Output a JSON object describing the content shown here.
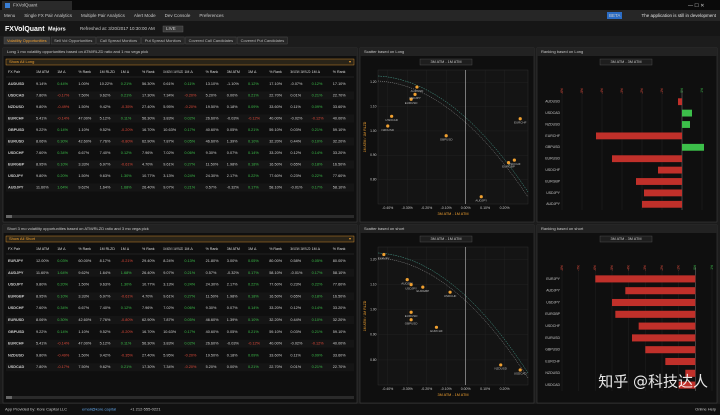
{
  "window": {
    "title": "FXVolQuant"
  },
  "menu": {
    "items": [
      "Menu",
      "Single FX Pair Analytics",
      "Multiple Pair Analytics",
      "Alert Mode",
      "Dev Console",
      "Preferences"
    ],
    "beta": "BETA",
    "notice": "The application is still in development"
  },
  "header": {
    "app": "FXVolQuant",
    "universe": "Majors",
    "refreshed": "Refreshed at: 3/20/2017 10:30:00 AM",
    "mode": "LIVE"
  },
  "tabs": [
    "Volatility Opportunities",
    "Sell Vol Opportunities",
    "Call Spread Monitors",
    "Put Spread Monitors",
    "Covered Call Candidates",
    "Covered Put Candidates"
  ],
  "panels": [
    {
      "table": {
        "title": "Long 1 mo volatility opportunities based on ATM/RLZD ratio and 1 mo vega pick",
        "filter": "Show All Long",
        "columns": [
          "FX Pair",
          "1M ATM",
          "1M Δ",
          "% Rank",
          "1M RLZD",
          "1M Δ",
          "% Rank",
          "1M ATM / 1M RLZD",
          "1M Δ",
          "% Rank",
          "3M ATM",
          "1M Δ",
          "% Rank",
          "3M ATM / 3M RLZD",
          "1M Δ",
          "% Rank"
        ],
        "rows": [
          [
            "AUDUSD",
            "9.14%",
            "0.44%",
            "1.00%",
            "10.22%",
            "0.21%",
            "56.30%",
            "0.61%",
            "0.11%",
            "13.10%",
            "-1.10%",
            "0.12%",
            "17.10%",
            "-0.07%",
            "0.12%",
            "17.10%"
          ],
          [
            "USDCAD",
            "7.80%",
            "-0.17%",
            "7.50%",
            "9.62%",
            "0.21%",
            "17.30%",
            "7.34%",
            "-0.20%",
            "5.20%",
            "0.00%",
            "0.21%",
            "22.70%",
            "0.01%",
            "0.21%",
            "22.70%"
          ],
          [
            "NZDUSD",
            "9.80%",
            "-0.49%",
            "1.50%",
            "9.42%",
            "-0.35%",
            "27.40%",
            "5.95%",
            "-0.20%",
            "19.50%",
            "0.18%",
            "0.09%",
            "33.60%",
            "0.11%",
            "0.09%",
            "33.60%"
          ],
          [
            "EURCHF",
            "5.41%",
            "-0.14%",
            "47.00%",
            "5.12%",
            "0.11%",
            "56.30%",
            "3.83%",
            "0.02%",
            "26.60%",
            "-0.03%",
            "-0.12%",
            "40.00%",
            "-0.02%",
            "-0.12%",
            "40.00%"
          ],
          [
            "GBPUSD",
            "9.22%",
            "0.14%",
            "1.10%",
            "9.52%",
            "-0.20%",
            "16.70%",
            "10.63%",
            "0.17%",
            "40.60%",
            "0.05%",
            "0.21%",
            "59.10%",
            "0.03%",
            "0.21%",
            "59.10%"
          ],
          [
            "EURUSD",
            "8.06%",
            "0.30%",
            "42.60%",
            "7.76%",
            "-0.80%",
            "62.90%",
            "7.87%",
            "0.05%",
            "46.60%",
            "1.39%",
            "0.10%",
            "32.20%",
            "0.44%",
            "0.10%",
            "32.20%"
          ],
          [
            "USDCHF",
            "7.60%",
            "0.34%",
            "6.67%",
            "7.40%",
            "0.12%",
            "7.96%",
            "7.02%",
            "0.06%",
            "9.30%",
            "0.07%",
            "0.14%",
            "33.20%",
            "0.12%",
            "0.14%",
            "33.20%"
          ],
          [
            "EURGBP",
            "8.95%",
            "0.10%",
            "3.33%",
            "6.97%",
            "-0.61%",
            "4.70%",
            "9.61%",
            "0.27%",
            "11.50%",
            "1.98%",
            "0.18%",
            "16.50%",
            "0.65%",
            "0.18%",
            "16.50%"
          ],
          [
            "USDJPY",
            "9.80%",
            "0.20%",
            "1.50%",
            "9.63%",
            "1.30%",
            "10.77%",
            "3.13%",
            "0.24%",
            "24.30%",
            "2.17%",
            "0.22%",
            "77.60%",
            "0.23%",
            "0.22%",
            "77.60%"
          ],
          [
            "AUDJPY",
            "11.60%",
            "1.64%",
            "9.62%",
            "1.64%",
            "1.68%",
            "26.40%",
            "9.07%",
            "0.21%",
            "0.57%",
            "-0.32%",
            "0.17%",
            "58.10%",
            "-0.01%",
            "0.17%",
            "58.10%"
          ]
        ]
      },
      "scatter": {
        "title": "Scatter based on Long",
        "selector": "3M ATM - 1M ATM",
        "xlabel": "3M ATM - 1M ATM",
        "ylabel": "1M ATM / 1M RLZD",
        "xlim": [
          -0.45,
          0.32
        ],
        "ylim": [
          0.7,
          1.25
        ],
        "xticks": [
          {
            "value": -0.4,
            "label": "-0.40%"
          },
          {
            "value": -0.3,
            "label": "-0.30%"
          },
          {
            "value": -0.2,
            "label": "-0.20%"
          },
          {
            "value": -0.1,
            "label": "-0.10%"
          },
          {
            "value": 0,
            "label": "0.00%"
          },
          {
            "value": 0.1,
            "label": "0.10%"
          },
          {
            "value": 0.2,
            "label": "0.20%"
          }
        ],
        "yticks": [
          {
            "value": 0.8,
            "label": "0.80"
          },
          {
            "value": 0.9,
            "label": "0.90"
          },
          {
            "value": 1,
            "label": "1.00"
          },
          {
            "value": 1.1,
            "label": "1.10"
          },
          {
            "value": 1.2,
            "label": "1.20"
          }
        ],
        "labels": [
          "AUDUSD",
          "USDCAD",
          "NZDUSD",
          "EURCHF",
          "GBPUSD",
          "EURUSD",
          "USDCHF",
          "EURGBP",
          "USDJPY",
          "AUDJPY"
        ],
        "x": [
          -0.25,
          -0.38,
          -0.4,
          0.28,
          -0.1,
          -0.28,
          0.25,
          0.22,
          -0.26,
          0.08
        ],
        "y": [
          1.18,
          1.06,
          1.02,
          1.05,
          0.98,
          1.13,
          0.88,
          0.87,
          1.15,
          0.73
        ]
      },
      "ranking": {
        "title": "Ranking based on Long",
        "selector": "3M ATM - 3M ATM",
        "xlim": [
          -6,
          1.5
        ],
        "xticks": [
          {
            "value": -6,
            "label": "-6%"
          },
          {
            "value": -5,
            "label": "-5%"
          },
          {
            "value": -4,
            "label": "-4%"
          },
          {
            "value": -3,
            "label": "-3%"
          },
          {
            "value": -2,
            "label": "-2%"
          },
          {
            "value": -1,
            "label": "-1%"
          },
          {
            "value": 0,
            "label": "0%"
          },
          {
            "value": 1,
            "label": "1%"
          }
        ],
        "categories": [
          "AUDUSD",
          "USDCAD",
          "NZDUSD",
          "EURCHF",
          "GBPUSD",
          "EURUSD",
          "USDCHF",
          "EURGBP",
          "USDJPY",
          "AUDJPY"
        ],
        "values": [
          -0.2,
          0.5,
          0.4,
          -4.3,
          1.1,
          -3.5,
          -1.2,
          -2.3,
          -1.9,
          -2.0
        ]
      }
    },
    {
      "table": {
        "title": "Short 3 mo volatility opportunities based on ATM/RLZD ratio and 3 mo vega pick",
        "filter": "Show All Short",
        "columns": [
          "FX Pair",
          "1M ATM",
          "1M Δ",
          "% Rank",
          "1M RLZD",
          "1M Δ",
          "% Rank",
          "1M ATM / 1M RLZD",
          "1M Δ",
          "% Rank",
          "3M ATM",
          "1M Δ",
          "% Rank",
          "3M ATM / 3M RLZD",
          "1M Δ",
          "% Rank"
        ],
        "rows": [
          [
            "EURJPY",
            "12.00%",
            "0.03%",
            "60.00%",
            "8.17%",
            "-0.21%",
            "29.40%",
            "8.24%",
            "0.13%",
            "21.80%",
            "3.00%",
            "0.05%",
            "80.00%",
            "0.58%",
            "0.05%",
            "80.00%"
          ],
          [
            "AUDJPY",
            "11.60%",
            "1.64%",
            "9.62%",
            "1.64%",
            "1.68%",
            "26.40%",
            "9.07%",
            "0.21%",
            "0.57%",
            "-0.32%",
            "0.17%",
            "58.10%",
            "-0.01%",
            "0.17%",
            "58.10%"
          ],
          [
            "USDJPY",
            "9.80%",
            "0.20%",
            "1.50%",
            "9.63%",
            "1.30%",
            "10.77%",
            "3.13%",
            "0.24%",
            "24.30%",
            "2.17%",
            "0.22%",
            "77.60%",
            "0.23%",
            "0.22%",
            "77.60%"
          ],
          [
            "EURGBP",
            "8.95%",
            "0.10%",
            "3.33%",
            "6.97%",
            "-0.61%",
            "4.70%",
            "9.61%",
            "0.27%",
            "11.50%",
            "1.98%",
            "0.18%",
            "16.50%",
            "0.65%",
            "0.18%",
            "16.50%"
          ],
          [
            "USDCHF",
            "7.60%",
            "0.34%",
            "6.67%",
            "7.40%",
            "0.12%",
            "7.96%",
            "7.02%",
            "0.06%",
            "9.30%",
            "0.07%",
            "0.14%",
            "33.20%",
            "0.12%",
            "0.14%",
            "33.20%"
          ],
          [
            "EURUSD",
            "8.06%",
            "0.30%",
            "42.60%",
            "7.76%",
            "-0.80%",
            "62.90%",
            "7.87%",
            "0.05%",
            "46.60%",
            "1.39%",
            "0.10%",
            "32.20%",
            "0.44%",
            "0.10%",
            "32.20%"
          ],
          [
            "GBPUSD",
            "9.22%",
            "0.14%",
            "1.10%",
            "9.52%",
            "-0.20%",
            "16.70%",
            "10.63%",
            "0.17%",
            "40.60%",
            "0.05%",
            "0.21%",
            "59.10%",
            "0.03%",
            "0.21%",
            "59.10%"
          ],
          [
            "EURCHF",
            "5.41%",
            "-0.14%",
            "47.00%",
            "5.12%",
            "0.11%",
            "56.30%",
            "3.83%",
            "0.02%",
            "26.60%",
            "-0.03%",
            "-0.12%",
            "40.00%",
            "-0.02%",
            "-0.12%",
            "40.00%"
          ],
          [
            "NZDUSD",
            "9.80%",
            "-0.49%",
            "1.50%",
            "9.42%",
            "-0.35%",
            "27.40%",
            "5.95%",
            "-0.20%",
            "19.50%",
            "0.18%",
            "0.09%",
            "33.60%",
            "0.11%",
            "0.09%",
            "33.60%"
          ],
          [
            "USDCAD",
            "7.80%",
            "-0.17%",
            "7.50%",
            "9.62%",
            "0.21%",
            "17.30%",
            "7.34%",
            "-0.20%",
            "5.20%",
            "0.00%",
            "0.21%",
            "22.70%",
            "0.01%",
            "0.21%",
            "22.70%"
          ]
        ]
      },
      "scatter": {
        "title": "Scatter based on short",
        "selector": "3M ATM - 1M ATM",
        "xlabel": "3M ATM - 1M ATM",
        "ylabel": "1M ATM / 1M RLZD",
        "xlim": [
          -0.45,
          0.32
        ],
        "ylim": [
          0.7,
          1.25
        ],
        "xticks": [
          {
            "value": -0.4,
            "label": "-0.40%"
          },
          {
            "value": -0.3,
            "label": "-0.30%"
          },
          {
            "value": -0.2,
            "label": "-0.20%"
          },
          {
            "value": -0.1,
            "label": "-0.10%"
          },
          {
            "value": 0,
            "label": "0.00%"
          },
          {
            "value": 0.1,
            "label": "0.10%"
          },
          {
            "value": 0.2,
            "label": "0.20%"
          }
        ],
        "yticks": [
          {
            "value": 0.8,
            "label": "0.80"
          },
          {
            "value": 0.9,
            "label": "0.90"
          },
          {
            "value": 1,
            "label": "1.00"
          },
          {
            "value": 1.1,
            "label": "1.10"
          },
          {
            "value": 1.2,
            "label": "1.20"
          }
        ],
        "labels": [
          "EURJPY",
          "AUDJPY",
          "USDJPY",
          "EURGBP",
          "USDCHF",
          "EURUSD",
          "GBPUSD",
          "EURCHF",
          "NZDUSD",
          "USDCAD"
        ],
        "x": [
          -0.42,
          -0.3,
          -0.28,
          -0.22,
          -0.08,
          -0.28,
          -0.28,
          -0.15,
          0.18,
          0.28
        ],
        "y": [
          1.22,
          1.12,
          1.1,
          1.09,
          1.07,
          0.99,
          0.96,
          0.93,
          0.78,
          0.76
        ]
      },
      "ranking": {
        "title": "Ranking based on short",
        "selector": "3M ATM - 3M ATM",
        "xlim": [
          -8,
          1
        ],
        "xticks": [
          {
            "value": -8,
            "label": "-8%"
          },
          {
            "value": -7,
            "label": "-7%"
          },
          {
            "value": -6,
            "label": "-6%"
          },
          {
            "value": -5,
            "label": "-5%"
          },
          {
            "value": -4,
            "label": "-4%"
          },
          {
            "value": -3,
            "label": "-3%"
          },
          {
            "value": -2,
            "label": "-2%"
          },
          {
            "value": -1,
            "label": "-1%"
          },
          {
            "value": 0,
            "label": "0%"
          },
          {
            "value": 1,
            "label": "1%"
          }
        ],
        "categories": [
          "EURJPY",
          "AUDJPY",
          "USDJPY",
          "EURGBP",
          "USDCHF",
          "EURUSD",
          "GBPUSD",
          "EURCHF",
          "NZDUSD",
          "USDCAD"
        ],
        "values": [
          -6.0,
          -4.2,
          -5.0,
          -4.8,
          -3.4,
          -3.8,
          -3.0,
          -1.8,
          -0.6,
          -1.0
        ]
      }
    }
  ],
  "footer": {
    "provider": "App Provided by: Kore Capital LLC",
    "email": "email@kore.capital",
    "phone": "+1 212-555-0221",
    "help": "Online Help"
  },
  "watermark": "知乎 @科技达人"
}
